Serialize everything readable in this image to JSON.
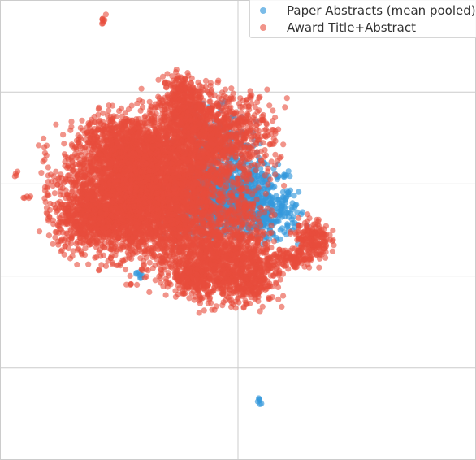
{
  "chart_data": {
    "type": "scatter",
    "title": "",
    "xlabel": "",
    "ylabel": "",
    "grid": true,
    "tick_labels_visible": false,
    "legend_position": "top-right",
    "series": [
      {
        "name": "Paper Abstracts (mean pooled)",
        "color": "#3498db",
        "clusters": [
          {
            "center": [
              5.9,
              5.75
            ],
            "spread": [
              0.55,
              0.35
            ],
            "count": 700
          },
          {
            "center": [
              5.2,
              5.6
            ],
            "spread": [
              0.45,
              0.4
            ],
            "count": 350
          },
          {
            "center": [
              6.6,
              5.3
            ],
            "spread": [
              0.5,
              0.25
            ],
            "count": 250
          },
          {
            "center": [
              5.5,
              6.8
            ],
            "spread": [
              0.5,
              0.4
            ],
            "count": 200
          },
          {
            "center": [
              4.9,
              7.6
            ],
            "spread": [
              0.1,
              0.08
            ],
            "count": 12
          },
          {
            "center": [
              7.2,
              6.2
            ],
            "spread": [
              0.05,
              0.05
            ],
            "count": 6
          },
          {
            "center": [
              3.5,
              4.0
            ],
            "spread": [
              0.04,
              0.05
            ],
            "count": 8
          },
          {
            "center": [
              6.55,
              1.3
            ],
            "spread": [
              0.03,
              0.04
            ],
            "count": 6
          }
        ]
      },
      {
        "name": "Award Title+Abstract",
        "color": "#e74c3c",
        "clusters": [
          {
            "center": [
              3.3,
              5.8
            ],
            "spread": [
              0.9,
              0.65
            ],
            "count": 2200
          },
          {
            "center": [
              4.3,
              5.7
            ],
            "spread": [
              0.75,
              0.8
            ],
            "count": 1800
          },
          {
            "center": [
              5.25,
              7.0
            ],
            "spread": [
              0.8,
              0.5
            ],
            "count": 1200
          },
          {
            "center": [
              3.1,
              6.8
            ],
            "spread": [
              0.55,
              0.35
            ],
            "count": 700
          },
          {
            "center": [
              5.6,
              4.35
            ],
            "spread": [
              0.65,
              0.45
            ],
            "count": 1000
          },
          {
            "center": [
              2.3,
              5.3
            ],
            "spread": [
              0.45,
              0.35
            ],
            "count": 500
          },
          {
            "center": [
              4.6,
              7.8
            ],
            "spread": [
              0.25,
              0.3
            ],
            "count": 300
          },
          {
            "center": [
              6.3,
              4.0
            ],
            "spread": [
              0.3,
              0.3
            ],
            "count": 250
          },
          {
            "center": [
              7.85,
              4.8
            ],
            "spread": [
              0.22,
              0.22
            ],
            "count": 200
          },
          {
            "center": [
              7.35,
              4.35
            ],
            "spread": [
              0.3,
              0.12
            ],
            "count": 120
          },
          {
            "center": [
              4.85,
              3.9
            ],
            "spread": [
              0.25,
              0.2
            ],
            "count": 150
          },
          {
            "center": [
              6.1,
              5.55
            ],
            "spread": [
              0.25,
              0.18
            ],
            "count": 80
          },
          {
            "center": [
              2.6,
              9.58
            ],
            "spread": [
              0.03,
              0.05
            ],
            "count": 8
          },
          {
            "center": [
              0.42,
              6.2
            ],
            "spread": [
              0.03,
              0.03
            ],
            "count": 4
          },
          {
            "center": [
              0.7,
              5.7
            ],
            "spread": [
              0.06,
              0.02
            ],
            "count": 5
          }
        ]
      }
    ],
    "xlim": [
      0,
      12
    ],
    "ylim": [
      0,
      10
    ],
    "x_gridlines": [
      0,
      3,
      6,
      9,
      12
    ],
    "y_gridlines": [
      0,
      2,
      4,
      6,
      8,
      10
    ]
  }
}
